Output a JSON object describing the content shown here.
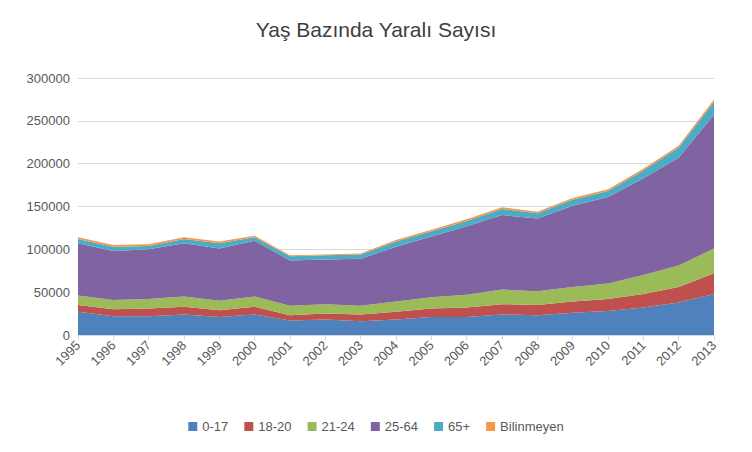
{
  "chart_data": {
    "type": "area",
    "title": "Yaş Bazında Yaralı Sayısı",
    "stacked": true,
    "grid": true,
    "legend": "bottom",
    "categories": [
      "1995",
      "1996",
      "1997",
      "1998",
      "1999",
      "2000",
      "2001",
      "2002",
      "2003",
      "2004",
      "2005",
      "2006",
      "2007",
      "2008",
      "2009",
      "2010",
      "2011",
      "2012",
      "2013"
    ],
    "ylim": [
      0,
      300000
    ],
    "yticks": [
      0,
      50000,
      100000,
      150000,
      200000,
      250000,
      300000
    ],
    "series": [
      {
        "name": "0-17",
        "color": "#4f81bd",
        "values": [
          27000,
          22000,
          22000,
          24000,
          21000,
          24000,
          17000,
          18000,
          16000,
          18000,
          21000,
          21000,
          24000,
          23000,
          26000,
          28000,
          32000,
          38000,
          48000
        ]
      },
      {
        "name": "18-20",
        "color": "#c0504d",
        "values": [
          8000,
          8000,
          9000,
          9000,
          8000,
          9000,
          6000,
          7000,
          8000,
          9000,
          10000,
          11000,
          12000,
          12000,
          13000,
          14000,
          16000,
          18000,
          24000
        ]
      },
      {
        "name": "21-24",
        "color": "#9bbb59",
        "values": [
          11000,
          11000,
          11000,
          12000,
          11000,
          12000,
          11000,
          11000,
          10000,
          12000,
          13000,
          15000,
          17000,
          16000,
          17000,
          18000,
          22000,
          25000,
          29000
        ]
      },
      {
        "name": "25-64",
        "color": "#8064a2",
        "values": [
          61000,
          57000,
          58000,
          62000,
          61000,
          65000,
          53000,
          52000,
          55000,
          64000,
          71000,
          80000,
          87000,
          85000,
          95000,
          101000,
          113000,
          126000,
          156000
        ]
      },
      {
        "name": "65+",
        "color": "#4bacc6",
        "values": [
          5000,
          5000,
          4000,
          5000,
          6000,
          4000,
          5000,
          5000,
          5000,
          6000,
          6000,
          6000,
          7000,
          6000,
          7000,
          7000,
          9000,
          12000,
          15000
        ]
      },
      {
        "name": "Bilinmeyen",
        "color": "#f79646",
        "values": [
          2000,
          2000,
          2000,
          2000,
          2000,
          2000,
          1000,
          1000,
          1000,
          2000,
          2000,
          2000,
          2000,
          2000,
          2000,
          2000,
          2000,
          2000,
          3000
        ]
      }
    ]
  }
}
